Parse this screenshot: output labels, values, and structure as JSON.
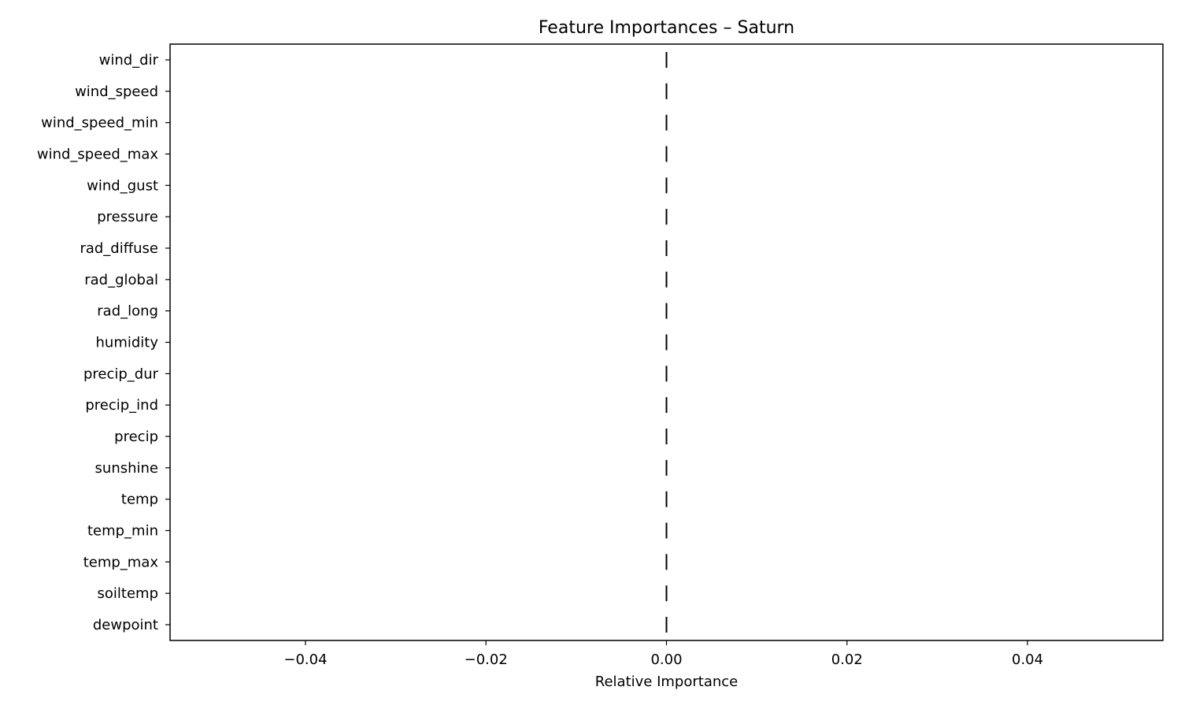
{
  "chart_data": {
    "type": "bar",
    "orientation": "horizontal",
    "title": "Feature Importances – Saturn",
    "xlabel": "Relative Importance",
    "ylabel": "",
    "xlim": [
      -0.055,
      0.055
    ],
    "xticks": [
      -0.04,
      -0.02,
      0.0,
      0.02,
      0.04
    ],
    "xtick_labels": [
      "−0.04",
      "−0.02",
      "0.00",
      "0.02",
      "0.04"
    ],
    "categories": [
      "wind_dir",
      "wind_speed",
      "wind_speed_min",
      "wind_speed_max",
      "wind_gust",
      "pressure",
      "rad_diffuse",
      "rad_global",
      "rad_long",
      "humidity",
      "precip_dur",
      "precip_ind",
      "precip",
      "sunshine",
      "temp",
      "temp_min",
      "temp_max",
      "soiltemp",
      "dewpoint"
    ],
    "values": [
      0,
      0,
      0,
      0,
      0,
      0,
      0,
      0,
      0,
      0,
      0,
      0,
      0,
      0,
      0,
      0,
      0,
      0,
      0
    ],
    "bar_color": "#000000",
    "grid": false,
    "legend": "none"
  }
}
